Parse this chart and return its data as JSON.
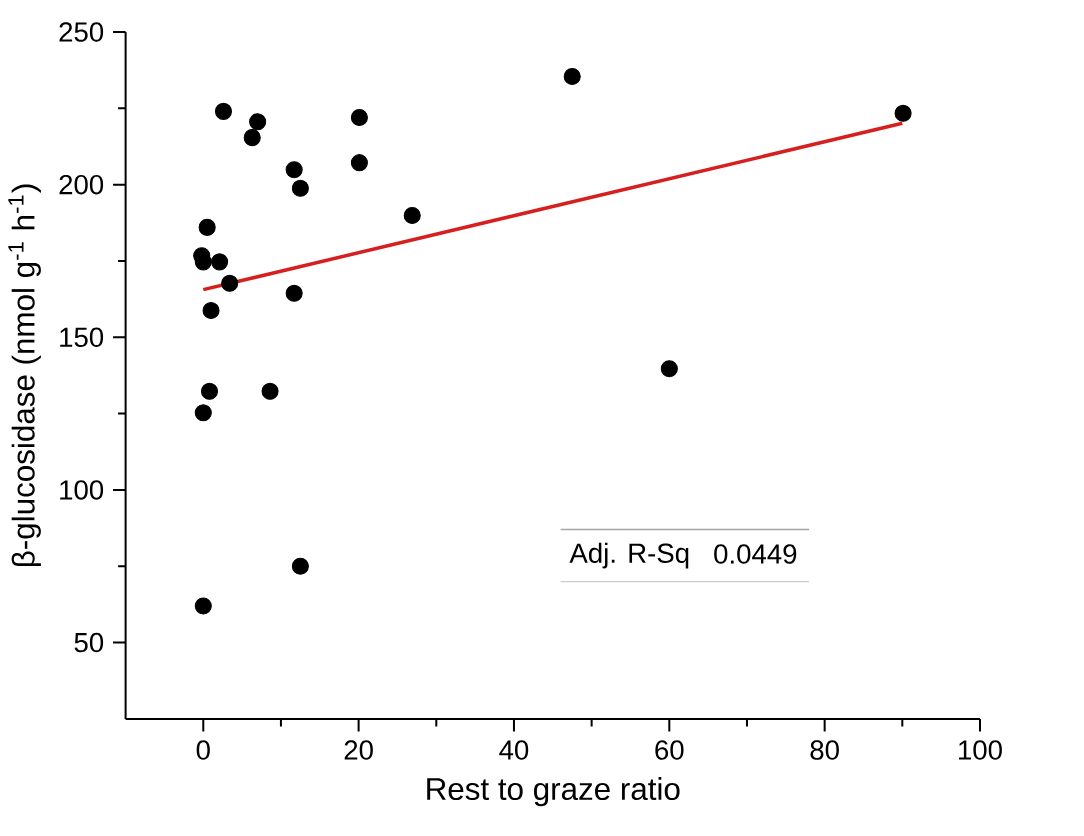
{
  "chart_data": {
    "type": "scatter",
    "xlabel": "Rest to graze ratio",
    "ylabel": "β-glucosidase (nmol g$^{-1}$ h$^{-1}$)",
    "xlim": [
      -10,
      100
    ],
    "xticks": [
      0,
      20,
      40,
      60,
      80,
      100
    ],
    "ylim": [
      25,
      250
    ],
    "yticks": [
      50,
      100,
      150,
      200,
      250
    ],
    "grid": false,
    "annotations": [
      "Adj. R-Sq",
      "0.0449"
    ],
    "series": [
      {
        "marker": "circle",
        "color": "#000000",
        "x": [
          2.6,
          7.0,
          6.3,
          20.1,
          20.1,
          11.7,
          12.5,
          26.9,
          0.5,
          -0.2,
          0,
          2.1,
          3.4,
          1.0,
          11.7,
          0.8,
          8.6,
          0,
          12.5,
          0,
          47.5,
          90.1,
          60.0
        ],
        "values": [
          224,
          220.6,
          215.4,
          222,
          207.2,
          204.9,
          198.8,
          189.9,
          186,
          176.7,
          174.7,
          174.7,
          167.7,
          158.8,
          164.4,
          132.3,
          132.3,
          125.3,
          75,
          62,
          235.4,
          223.4,
          139.7
        ]
      },
      {
        "type": "line",
        "marker": "none",
        "color": "#d62020",
        "x": [
          0,
          90
        ],
        "values": [
          165.6,
          220.1
        ]
      }
    ]
  }
}
